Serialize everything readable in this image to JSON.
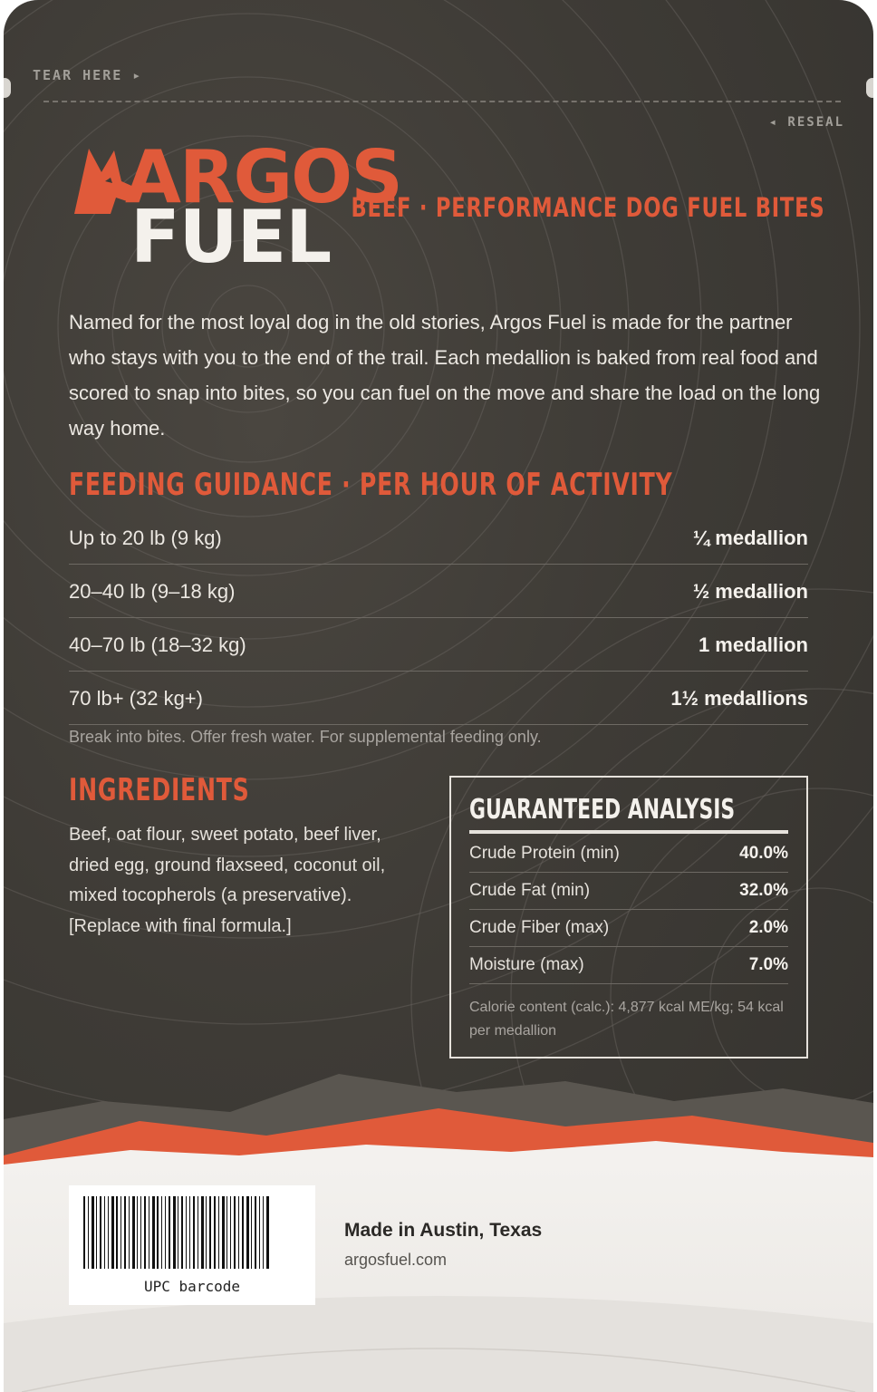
{
  "package": {
    "tear_label": "TEAR HERE ▸",
    "reseal_label": "◂ RESEAL"
  },
  "brand": {
    "name_top": "ARGOS",
    "name_bottom": "FUEL",
    "tagline": "BEEF · PERFORMANCE DOG FUEL BITES",
    "accent_color": "#e05a3a"
  },
  "intro": "Named for the most loyal dog in the old stories, Argos Fuel is made for the partner who stays with you to the end of the trail. Each medallion is baked from real food and scored to snap into bites, so you can fuel on the move and share the load on the long way home.",
  "feeding": {
    "title": "FEEDING GUIDANCE · PER HOUR OF ACTIVITY",
    "rows": [
      {
        "weight": "Up to 20 lb (9 kg)",
        "amount": "¼ medallion"
      },
      {
        "weight": "20–40 lb (9–18 kg)",
        "amount": "½ medallion"
      },
      {
        "weight": "40–70 lb (18–32 kg)",
        "amount": "1 medallion"
      },
      {
        "weight": "70 lb+ (32 kg+)",
        "amount": "1½ medallions"
      }
    ],
    "note": "Break into bites. Offer fresh water. For supplemental feeding only."
  },
  "ingredients": {
    "title": "INGREDIENTS",
    "text": "Beef, oat flour, sweet potato, beef liver, dried egg, ground flaxseed, coconut oil, mixed tocopherols (a preservative). [Replace with final formula.]"
  },
  "analysis": {
    "title": "GUARANTEED ANALYSIS",
    "rows": [
      {
        "label": "Crude Protein (min)",
        "value": "40.0%"
      },
      {
        "label": "Crude Fat (min)",
        "value": "32.0%"
      },
      {
        "label": "Crude Fiber (max)",
        "value": "2.0%"
      },
      {
        "label": "Moisture (max)",
        "value": "7.0%"
      }
    ],
    "calorie": "Calorie content (calc.): 4,877 kcal ME/kg; 54 kcal per medallion"
  },
  "footer": {
    "barcode_label": "UPC barcode",
    "made_in": "Made in Austin, Texas",
    "website": "argosfuel.com"
  }
}
